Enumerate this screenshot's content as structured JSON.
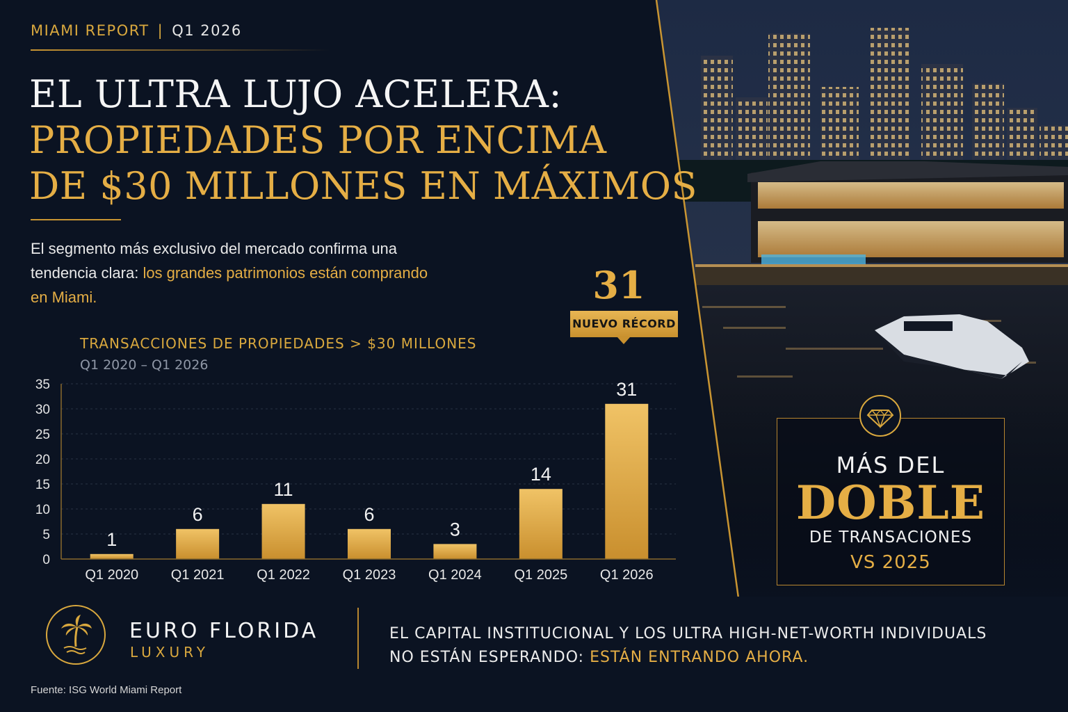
{
  "header": {
    "kicker": "MIAMI REPORT",
    "kicker_separator": "|",
    "period": "Q1 2026",
    "title_line1": "EL ULTRA LUJO ACELERA:",
    "title_line2": "PROPIEDADES POR ENCIMA",
    "title_line3": "DE $30 MILLONES EN MÁXIMOS"
  },
  "lead": {
    "text_plain": "El segmento más exclusivo del mercado confirma una tendencia clara: ",
    "text_highlight": "los grandes patrimonios están comprando en Miami."
  },
  "record": {
    "value": "31",
    "tag": "NUEVO RÉCORD"
  },
  "chart_data": {
    "type": "bar",
    "title": "TRANSACCIONES DE PROPIEDADES > $30 MILLONES",
    "subtitle": "Q1 2020 – Q1 2026",
    "categories": [
      "Q1 2020",
      "Q1 2021",
      "Q1 2022",
      "Q1 2023",
      "Q1 2024",
      "Q1 2025",
      "Q1 2026"
    ],
    "values": [
      1,
      6,
      11,
      6,
      3,
      14,
      31
    ],
    "ylim": [
      0,
      35
    ],
    "yticks": [
      0,
      5,
      10,
      15,
      20,
      25,
      30,
      35
    ],
    "grid": true,
    "highlight_category": "Q1 2026",
    "bar_color": "#e0a844",
    "highlight_label_color": "#e5ae45"
  },
  "callout": {
    "line1": "MÁS DEL",
    "line2": "DOBLE",
    "line3": "DE TRANSACIONES",
    "line4": "VS 2025",
    "icon": "diamond-icon"
  },
  "brand": {
    "name": "EURO FLORIDA",
    "sub": "LUXURY",
    "icon": "palm-tree-icon"
  },
  "footer_quote": {
    "line1": "EL CAPITAL INSTITUCIONAL Y LOS ULTRA HIGH-NET-WORTH INDIVIDUALS",
    "line2_plain": "NO ESTÁN ESPERANDO: ",
    "line2_highlight": "ESTÁN ENTRANDO AHORA."
  },
  "source": "Fuente: ISG World Miami Report",
  "colors": {
    "background": "#0b1322",
    "gold": "#e5ae45",
    "text": "#f2f2f2"
  }
}
